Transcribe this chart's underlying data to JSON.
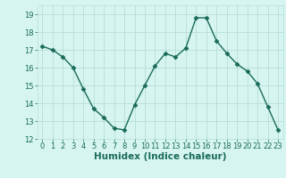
{
  "x": [
    0,
    1,
    2,
    3,
    4,
    5,
    6,
    7,
    8,
    9,
    10,
    11,
    12,
    13,
    14,
    15,
    16,
    17,
    18,
    19,
    20,
    21,
    22,
    23
  ],
  "y": [
    17.2,
    17.0,
    16.6,
    16.0,
    14.8,
    13.7,
    13.2,
    12.6,
    12.5,
    13.9,
    15.0,
    16.1,
    16.8,
    16.6,
    17.1,
    18.8,
    18.8,
    17.5,
    16.8,
    16.2,
    15.8,
    15.1,
    13.8,
    12.5
  ],
  "xlim": [
    -0.5,
    23.5
  ],
  "ylim": [
    12,
    19.5
  ],
  "yticks": [
    12,
    13,
    14,
    15,
    16,
    17,
    18,
    19
  ],
  "xticks": [
    0,
    1,
    2,
    3,
    4,
    5,
    6,
    7,
    8,
    9,
    10,
    11,
    12,
    13,
    14,
    15,
    16,
    17,
    18,
    19,
    20,
    21,
    22,
    23
  ],
  "xlabel": "Humidex (Indice chaleur)",
  "line_color": "#1a6b5a",
  "marker": "D",
  "marker_size": 2.5,
  "line_width": 1.0,
  "bg_color": "#d6f5f0",
  "grid_color": "#b8ddd8",
  "tick_fontsize": 6.0,
  "xlabel_fontsize": 7.5
}
